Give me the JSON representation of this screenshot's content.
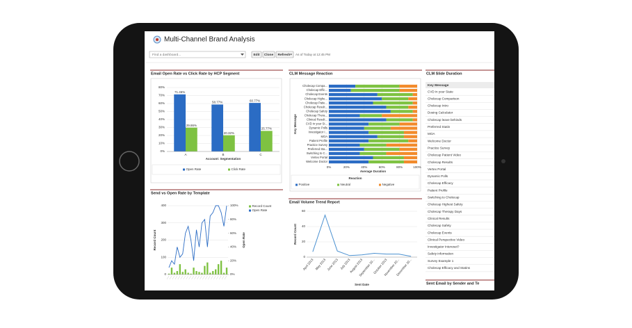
{
  "header": {
    "title": "Multi-Channel Brand Analysis"
  },
  "toolbar": {
    "search_placeholder": "Find a dashboard...",
    "buttons": [
      "Edit",
      "Clone",
      "Refresh"
    ],
    "as_of": "As of Today at 12:45 PM"
  },
  "chart_data": [
    {
      "type": "bar",
      "title": "Email Open Rate vs Click Rate by HCP Segment",
      "x_label": "Account: Segmentation",
      "categories": [
        "A",
        "B",
        "C"
      ],
      "series": [
        {
          "name": "Open Rate",
          "color": "#2b6cc4",
          "values": [
            71.46,
            58.77,
            60.77
          ],
          "value_labels": [
            "71.46%",
            "58.77%",
            "60.77%"
          ]
        },
        {
          "name": "Click Rate",
          "color": "#7ec242",
          "values": [
            29.86,
            20.32,
            25.77
          ],
          "value_labels": [
            "29.86%",
            "20.32%",
            "25.77%"
          ]
        }
      ],
      "ylim": [
        0,
        80
      ],
      "yticks": [
        {
          "value": 0,
          "label": "0%"
        },
        {
          "value": 10,
          "label": "10%"
        },
        {
          "value": 20,
          "label": "20%"
        },
        {
          "value": 30,
          "label": "30%"
        },
        {
          "value": 40,
          "label": "40%"
        },
        {
          "value": 50,
          "label": "50%"
        },
        {
          "value": 60,
          "label": "60%"
        },
        {
          "value": 70,
          "label": "70%"
        },
        {
          "value": 80,
          "label": "80%"
        }
      ],
      "grid": true
    },
    {
      "type": "hbar",
      "title": "CLM Message Reaction",
      "x_label": "Average Duration",
      "y_label": "Key Message",
      "legend_title": "Reaction",
      "categories": [
        "Cholecap Compa...",
        "Cholecap Effic...",
        "Cholecap Events",
        "Cholecap Highe...",
        "Cholecap Patie...",
        "Cholecap Result...",
        "Cholecap Safety",
        "Cholecap Thera...",
        "Clinical Result...",
        "CVD in your St...",
        "Dynamic Polls",
        "Investigator I...",
        "MOA",
        "Patient Profile",
        "Practice Survey",
        "Preferred Sta...",
        "Switching to C...",
        "Vertex Portal",
        "Welcome Doctor"
      ],
      "series": [
        {
          "name": "Positive",
          "color": "#2b6cc4",
          "values": [
            30,
            25,
            55,
            60,
            50,
            65,
            70,
            35,
            65,
            45,
            40,
            45,
            55,
            45,
            35,
            40,
            35,
            50,
            45
          ]
        },
        {
          "name": "Neutral",
          "color": "#7ec242",
          "values": [
            50,
            55,
            40,
            30,
            45,
            25,
            25,
            25,
            30,
            35,
            30,
            40,
            30,
            45,
            30,
            40,
            30,
            35,
            40
          ]
        },
        {
          "name": "Negative",
          "color": "#f28b2c",
          "values": [
            20,
            20,
            5,
            10,
            5,
            10,
            5,
            40,
            5,
            20,
            30,
            15,
            15,
            10,
            35,
            20,
            35,
            15,
            15
          ]
        }
      ],
      "xlim": [
        0,
        100
      ],
      "xticks": [
        {
          "value": 0,
          "label": "0%"
        },
        {
          "value": 20,
          "label": "20%"
        },
        {
          "value": 40,
          "label": "40%"
        },
        {
          "value": 60,
          "label": "60%"
        },
        {
          "value": 80,
          "label": "80%"
        },
        {
          "value": 100,
          "label": "100%"
        }
      ],
      "grid": true
    },
    {
      "type": "combo",
      "title": "Send vs Open Rate by Template",
      "y_label": "Record Count",
      "y2_label": "Open Rate",
      "categories": [
        null,
        null,
        null,
        null,
        null,
        null,
        null,
        null,
        null,
        null,
        null,
        null,
        null,
        null,
        null,
        null,
        null,
        null,
        null,
        null,
        null,
        null
      ],
      "series": [
        {
          "name": "Record Count",
          "color": "#7ec242",
          "values": [
            5,
            40,
            10,
            20,
            60,
            15,
            30,
            10,
            5,
            40,
            20,
            15,
            10,
            50,
            70,
            10,
            20,
            30,
            60,
            80,
            10,
            40
          ]
        },
        {
          "name": "Open Rate",
          "color": "#2b6cc4",
          "axis": "y2",
          "values": [
            10,
            20,
            15,
            40,
            25,
            30,
            60,
            70,
            50,
            20,
            65,
            40,
            75,
            80,
            40,
            85,
            90,
            100,
            100,
            90,
            70,
            100
          ]
        }
      ],
      "ylim": [
        0,
        400
      ],
      "yticks": [
        0,
        100,
        200,
        300,
        400
      ],
      "y2lim": [
        0,
        100
      ],
      "y2ticks": [
        {
          "value": 0,
          "label": "0%"
        },
        {
          "value": 20,
          "label": "20%"
        },
        {
          "value": 40,
          "label": "40%"
        },
        {
          "value": 60,
          "label": "60%"
        },
        {
          "value": 80,
          "label": "80%"
        },
        {
          "value": 100,
          "label": "100%"
        }
      ],
      "grid": true
    },
    {
      "type": "line",
      "title": "Email Volume Trend Report",
      "x_label": "Sent Date",
      "y_label": "Record Count",
      "categories": [
        "April 2013",
        "May 2013",
        "June 2013",
        "July 2013",
        "August 2013",
        "September 20...",
        "October 2013",
        "November 20...",
        "December 20..."
      ],
      "series": [
        {
          "name": "Record Count",
          "color": "#4a90d0",
          "values": [
            7,
            55,
            8,
            2,
            3,
            5,
            4,
            4,
            1
          ]
        }
      ],
      "ylim": [
        0,
        60
      ],
      "yticks": [
        0,
        20,
        40,
        60
      ],
      "grid": true
    }
  ],
  "table": {
    "title": "CLM Slide Duration",
    "header": "Key Message",
    "rows": [
      "CVD in your State",
      "Cholecap Comparison",
      "Cholecap Intro",
      "Dosing Calculator",
      "Cholecap leave behinds",
      "Preferred Statin",
      "MOA",
      "Welcome Doctor",
      "Practice Survey",
      "Cholecap Patient Video",
      "Cholecap Results",
      "Vertex Portal",
      "Dynamic Polls",
      "Cholecap Efficacy",
      "Patient Profile",
      "Switching to Cholecap",
      "Cholecap Highest Safety",
      "Cholecap Therapy Days",
      "Clinical Results",
      "Cholecap Safety",
      "Cholecap Events",
      "Clinical Perspective Video",
      "Investigator Intereset?",
      "Safety information",
      "Survey Example 1",
      "Cholecap Efficacy and Statins"
    ]
  },
  "footer_panel": {
    "title": "Sent Email by Sender and Te"
  }
}
